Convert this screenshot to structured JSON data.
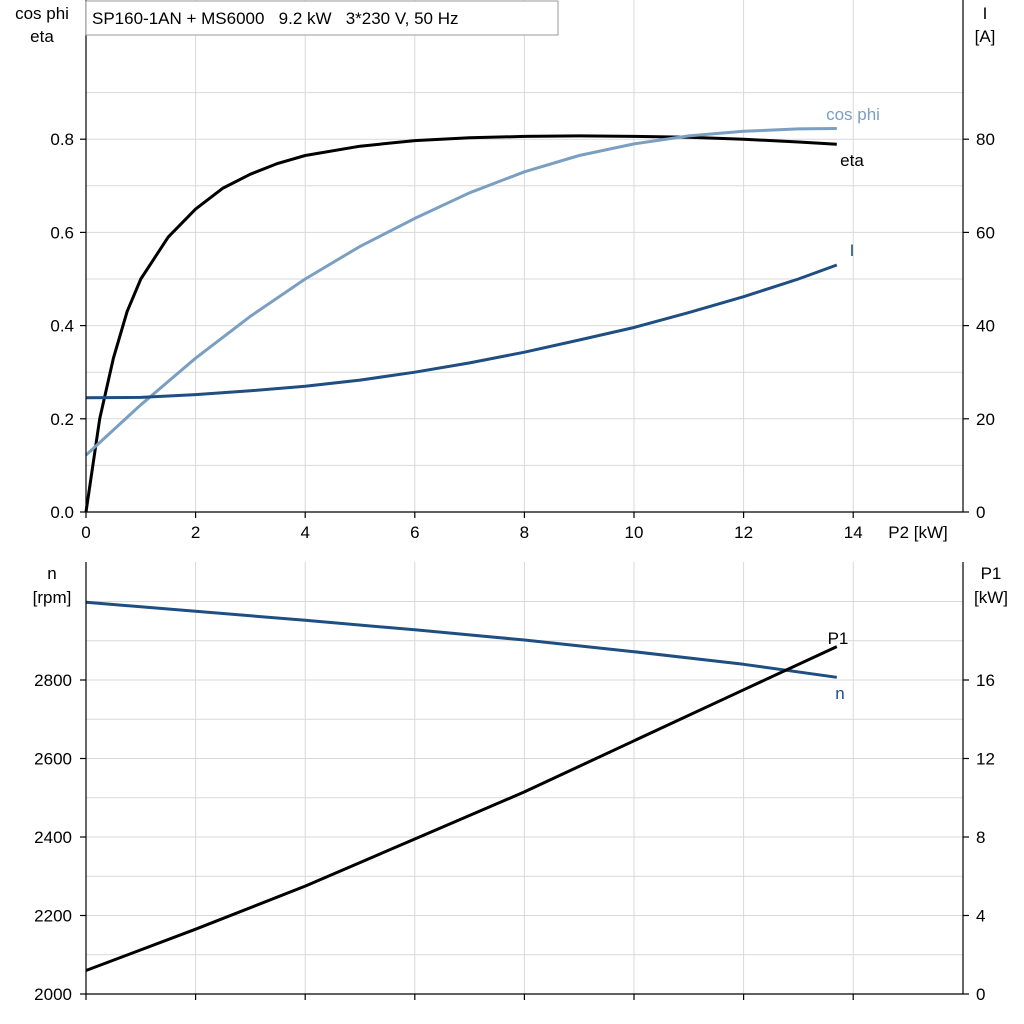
{
  "chart_data": [
    {
      "type": "line",
      "title": "SP160-1AN + MS6000   9.2 kW   3*230 V, 50 Hz",
      "xlabel": "P2 [kW]",
      "x_ticks": [
        "0",
        "2",
        "4",
        "6",
        "8",
        "10",
        "12",
        "14"
      ],
      "xlim": [
        0,
        16
      ],
      "grid": true,
      "y_left": {
        "label_lines": [
          "cos phi",
          "eta"
        ],
        "ylim": [
          0,
          1.0
        ],
        "ticks": [
          "0.0",
          "0.2",
          "0.4",
          "0.6",
          "0.8"
        ]
      },
      "y_right": {
        "label_lines": [
          "I",
          "[A]"
        ],
        "ylim": [
          0,
          100
        ],
        "ticks": [
          "0",
          "20",
          "40",
          "60",
          "80"
        ]
      },
      "series": [
        {
          "name": "eta",
          "axis": "left",
          "color": "#000000",
          "x": [
            0,
            0.25,
            0.5,
            0.75,
            1.0,
            1.5,
            2.0,
            2.5,
            3.0,
            3.5,
            4.0,
            5.0,
            6.0,
            7.0,
            8.0,
            9.0,
            10.0,
            11.0,
            12.0,
            13.0,
            13.7
          ],
          "y": [
            0.0,
            0.2,
            0.33,
            0.43,
            0.5,
            0.59,
            0.65,
            0.695,
            0.725,
            0.748,
            0.765,
            0.785,
            0.797,
            0.803,
            0.806,
            0.807,
            0.806,
            0.804,
            0.8,
            0.794,
            0.789
          ]
        },
        {
          "name": "cos phi",
          "axis": "left",
          "color": "#7a9fc0",
          "x": [
            0,
            1,
            2,
            3,
            4,
            5,
            6,
            7,
            8,
            9,
            10,
            11,
            12,
            13,
            13.7
          ],
          "y": [
            0.122,
            0.23,
            0.33,
            0.42,
            0.5,
            0.57,
            0.63,
            0.685,
            0.73,
            0.765,
            0.79,
            0.807,
            0.817,
            0.822,
            0.823
          ]
        },
        {
          "name": "I",
          "axis": "right",
          "color": "#1f4e82",
          "x": [
            0,
            1,
            2,
            3,
            4,
            5,
            6,
            7,
            8,
            9,
            10,
            11,
            12,
            13,
            13.7
          ],
          "y": [
            24.5,
            24.6,
            25.2,
            26,
            27,
            28.3,
            30,
            32,
            34.3,
            36.9,
            39.6,
            42.8,
            46.2,
            50,
            53
          ]
        }
      ]
    },
    {
      "type": "line",
      "xlim": [
        0,
        16
      ],
      "grid": true,
      "y_left": {
        "label_lines": [
          "n",
          "[rpm]"
        ],
        "ylim": [
          2000,
          3100
        ],
        "ticks": [
          "2000",
          "2200",
          "2400",
          "2600",
          "2800"
        ]
      },
      "y_right": {
        "label_lines": [
          "P1",
          "[kW]"
        ],
        "ylim": [
          0,
          22
        ],
        "ticks": [
          "0",
          "4",
          "8",
          "12",
          "16"
        ]
      },
      "series": [
        {
          "name": "n",
          "axis": "left",
          "color": "#1f4e82",
          "x": [
            0,
            2,
            4,
            6,
            8,
            10,
            12,
            13.7
          ],
          "y": [
            2998,
            2975,
            2952,
            2928,
            2902,
            2872,
            2840,
            2807
          ]
        },
        {
          "name": "P1",
          "axis": "right",
          "color": "#000000",
          "x": [
            0,
            2,
            4,
            6,
            8,
            10,
            12,
            13.7
          ],
          "y": [
            1.2,
            3.3,
            5.5,
            7.9,
            10.3,
            12.9,
            15.5,
            17.7
          ]
        }
      ]
    }
  ]
}
